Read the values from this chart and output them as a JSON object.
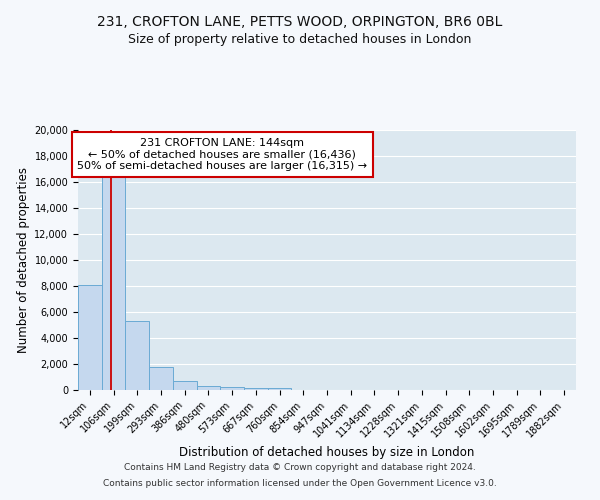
{
  "title_line1": "231, CROFTON LANE, PETTS WOOD, ORPINGTON, BR6 0BL",
  "title_line2": "Size of property relative to detached houses in London",
  "xlabel": "Distribution of detached houses by size in London",
  "ylabel": "Number of detached properties",
  "bin_labels": [
    "12sqm",
    "106sqm",
    "199sqm",
    "293sqm",
    "386sqm",
    "480sqm",
    "573sqm",
    "667sqm",
    "760sqm",
    "854sqm",
    "947sqm",
    "1041sqm",
    "1134sqm",
    "1228sqm",
    "1321sqm",
    "1415sqm",
    "1508sqm",
    "1602sqm",
    "1695sqm",
    "1789sqm",
    "1882sqm"
  ],
  "bar_values": [
    8100,
    16500,
    5300,
    1800,
    700,
    320,
    240,
    170,
    120,
    0,
    0,
    0,
    0,
    0,
    0,
    0,
    0,
    0,
    0,
    0,
    0
  ],
  "bar_color": "#c5d8ee",
  "bar_edge_color": "#6aaad4",
  "background_color": "#dce8f0",
  "grid_color": "#ffffff",
  "annotation_title": "231 CROFTON LANE: 144sqm",
  "annotation_line1": "← 50% of detached houses are smaller (16,436)",
  "annotation_line2": "50% of semi-detached houses are larger (16,315) →",
  "annotation_box_color": "#ffffff",
  "annotation_border_color": "#cc0000",
  "ylim": [
    0,
    20000
  ],
  "yticks": [
    0,
    2000,
    4000,
    6000,
    8000,
    10000,
    12000,
    14000,
    16000,
    18000,
    20000
  ],
  "footer_line1": "Contains HM Land Registry data © Crown copyright and database right 2024.",
  "footer_line2": "Contains public sector information licensed under the Open Government Licence v3.0.",
  "title_fontsize": 10,
  "subtitle_fontsize": 9,
  "axis_label_fontsize": 8.5,
  "tick_fontsize": 7,
  "annotation_fontsize": 8,
  "footer_fontsize": 6.5
}
